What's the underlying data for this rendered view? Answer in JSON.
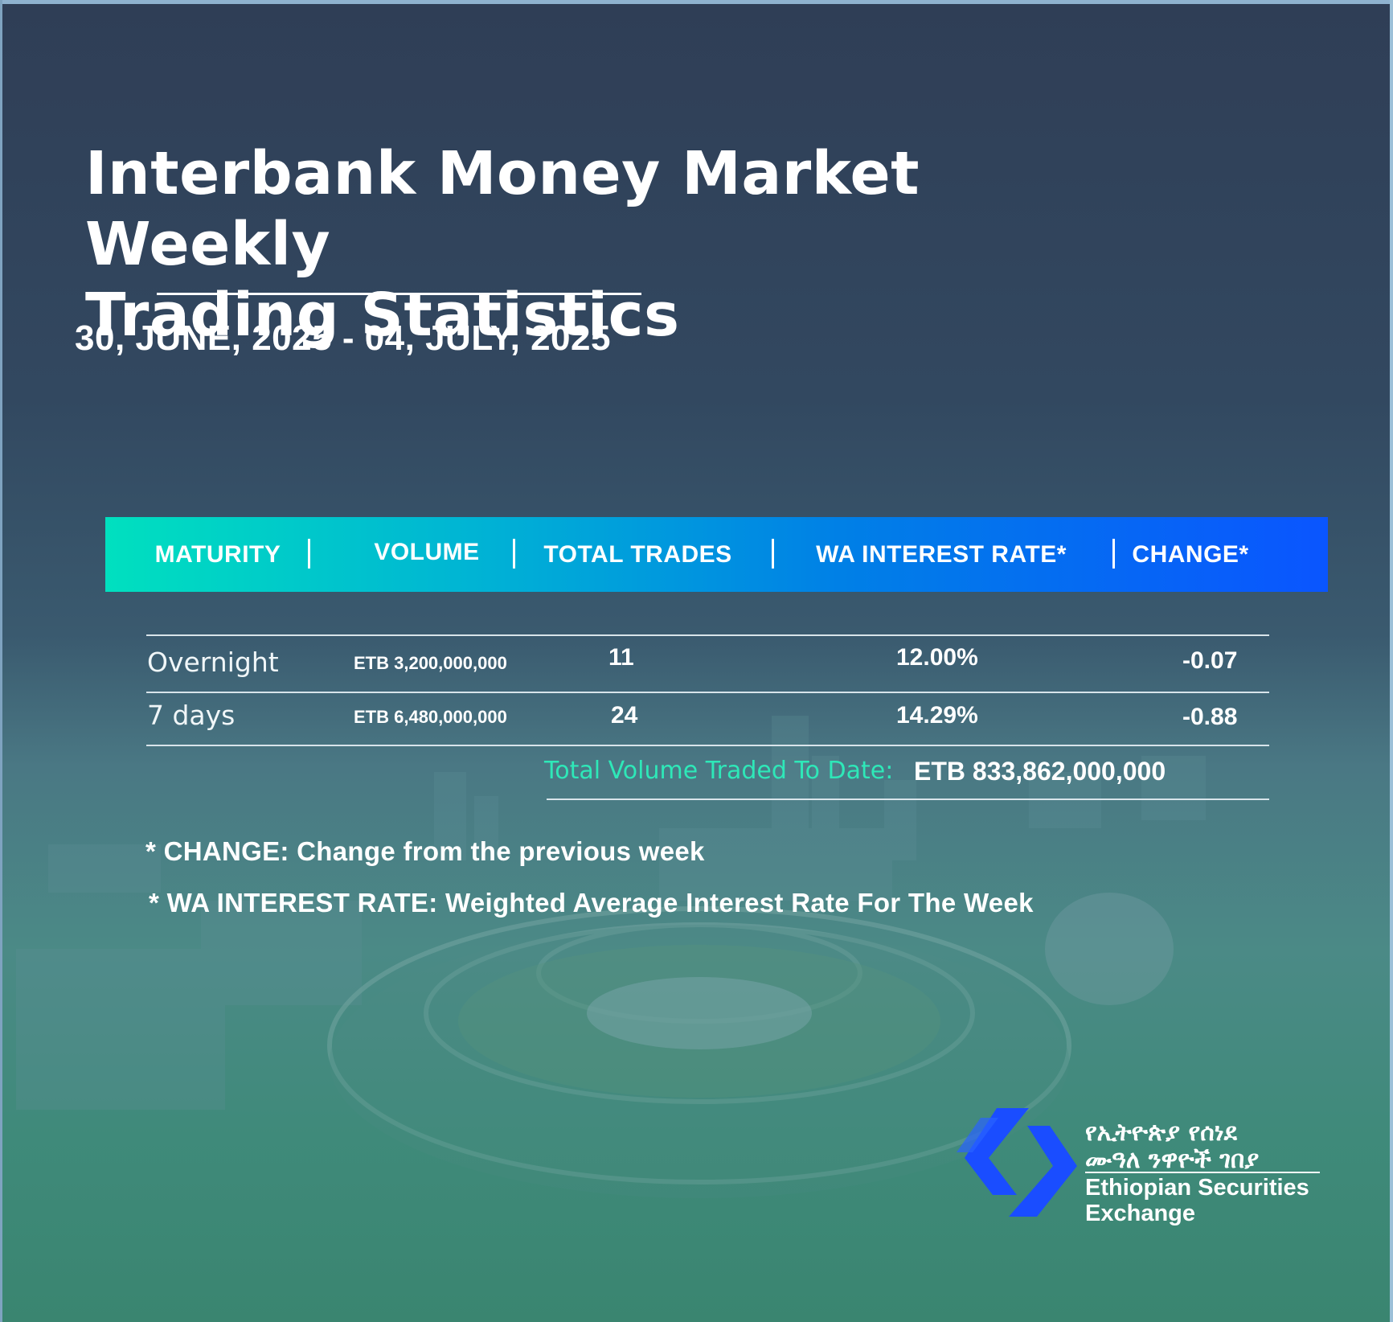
{
  "title_line1": "Interbank Money Market Weekly",
  "title_line2": "Trading Statistics",
  "date_range": "30, JUNE, 2025 - 04, JULY, 2025",
  "table": {
    "headers": {
      "maturity": "MATURITY",
      "volume": "VOLUME",
      "total_trades": "TOTAL TRADES",
      "wa_interest_rate": "WA INTEREST RATE*",
      "change": "CHANGE*"
    },
    "rows": [
      {
        "maturity": "Overnight",
        "volume": "ETB 3,200,000,000",
        "total_trades": "11",
        "wa_interest_rate": "12.00%",
        "change": "-0.07"
      },
      {
        "maturity": "7 days",
        "volume": "ETB 6,480,000,000",
        "total_trades": "24",
        "wa_interest_rate": "14.29%",
        "change": "-0.88"
      }
    ],
    "total_label": "Total Volume Traded To Date:",
    "total_value": "ETB 833,862,000,000"
  },
  "notes": [
    "* CHANGE: Change from the previous week",
    "* WA INTEREST RATE: Weighted Average Interest Rate For The Week"
  ],
  "logo": {
    "amharic_line1": "የኢትዮጵያ የሰነደ",
    "amharic_line2": "ሙዓለ ንዋዮች ገበያ",
    "english_line1": "Ethiopian Securities",
    "english_line2": "Exchange",
    "mark_color": "#1a4dff"
  },
  "colors": {
    "header_gradient_start": "#00e0bf",
    "header_gradient_end": "#0a55ff",
    "total_label": "#2ee8b8"
  }
}
